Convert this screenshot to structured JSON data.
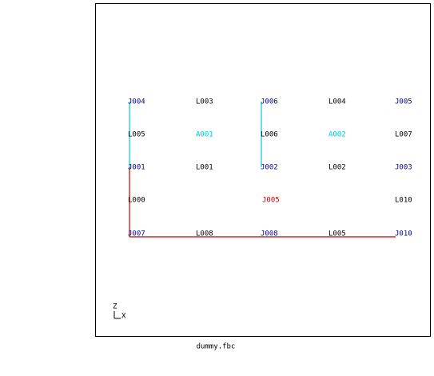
{
  "labels": {
    "row1": [
      "J004",
      "L003",
      "J006",
      "L004",
      "J005"
    ],
    "row2": [
      "L005",
      "A001",
      "L006",
      "A002",
      "L007"
    ],
    "row3": [
      "J001",
      "L001",
      "J002",
      "L002",
      "J003"
    ],
    "row4": [
      "L000",
      "J005",
      "L010"
    ],
    "row5": [
      "J007",
      "L008",
      "J008",
      "L005",
      "J010"
    ]
  },
  "axis": {
    "z": "Z",
    "x": "X"
  },
  "footer": "dummy.fbc"
}
